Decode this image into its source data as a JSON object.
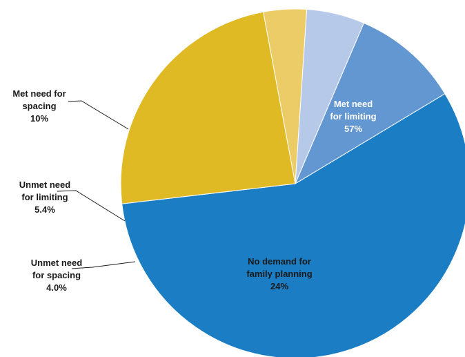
{
  "chart_data": {
    "type": "pie",
    "start_angle_deg": 59,
    "direction": "clockwise",
    "slices": [
      {
        "label": [
          "Met need",
          "for limiting",
          "57%"
        ],
        "value": 57.0,
        "color": "#1b7ec4",
        "label_style": "inside-white"
      },
      {
        "label": [
          "No demand for",
          "family planning",
          "24%"
        ],
        "value": 24.0,
        "color": "#dfba24",
        "label_style": "inside-dark"
      },
      {
        "label": [
          "Unmet need",
          "for spacing",
          "4.0%"
        ],
        "value": 4.0,
        "color": "#ebcc66",
        "label_style": "outside"
      },
      {
        "label": [
          "Unmet need",
          "for limiting",
          "5.4%"
        ],
        "value": 5.4,
        "color": "#b7c9e9",
        "label_style": "outside"
      },
      {
        "label": [
          "Met need for",
          "spacing",
          "10%"
        ],
        "value": 10.0,
        "color": "#6397d2",
        "label_style": "outside"
      }
    ]
  }
}
